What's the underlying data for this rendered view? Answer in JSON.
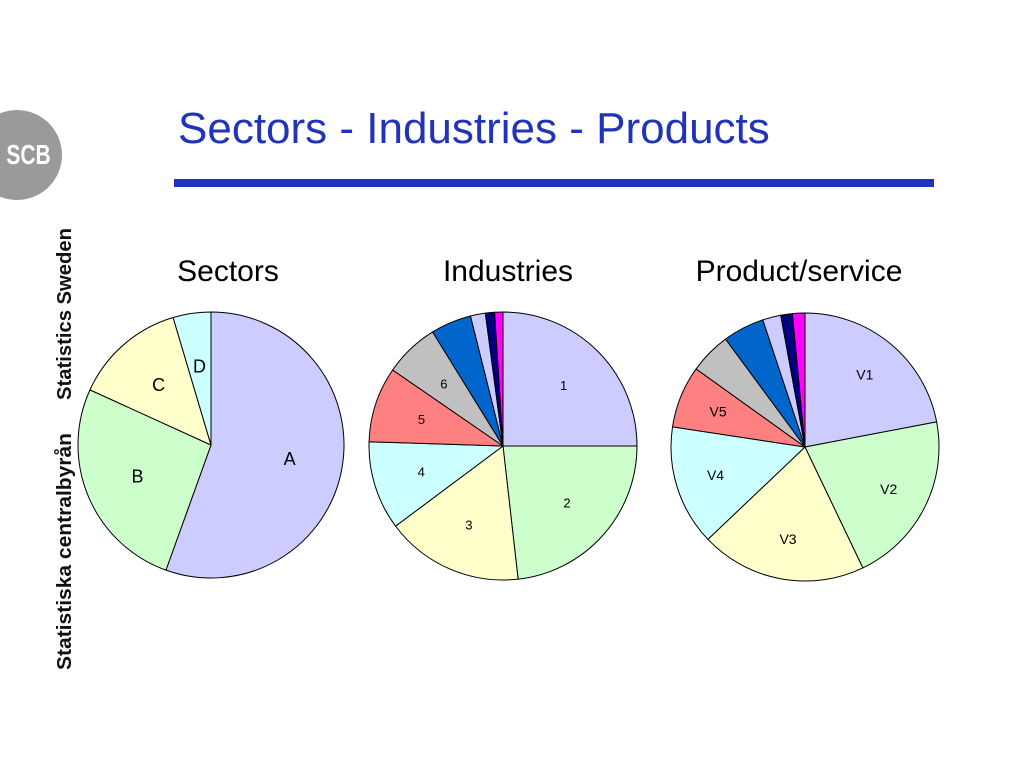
{
  "slide": {
    "title": "Sectors - Industries - Products",
    "logo_text": "SCB",
    "side_text_1": "Statistics Sweden",
    "side_text_2": "Statistiska centralbyrån",
    "title_color": "#2233bb"
  },
  "chart_data": [
    {
      "type": "pie",
      "title": "Sectors",
      "start_angle_deg": 0,
      "direction": "clockwise",
      "slices": [
        {
          "label": "A",
          "value": 55.5,
          "color": "#ccccff"
        },
        {
          "label": "B",
          "value": 26.3,
          "color": "#ccffcc"
        },
        {
          "label": "C",
          "value": 13.6,
          "color": "#ffffcc"
        },
        {
          "label": "D",
          "value": 4.6,
          "color": "#ccffff"
        }
      ]
    },
    {
      "type": "pie",
      "title": "Industries",
      "start_angle_deg": 0,
      "direction": "clockwise",
      "slices": [
        {
          "label": "1",
          "value": 25,
          "color": "#ccccff"
        },
        {
          "label": "2",
          "value": 23.2,
          "color": "#ccffcc"
        },
        {
          "label": "3",
          "value": 16.6,
          "color": "#ffffcc"
        },
        {
          "label": "4",
          "value": 10.7,
          "color": "#ccffff"
        },
        {
          "label": "5",
          "value": 9.1,
          "color": "#ff8080"
        },
        {
          "label": "6",
          "value": 6.6,
          "color": "#c0c0c0"
        },
        {
          "label": "",
          "value": 4.9,
          "color": "#0066cc"
        },
        {
          "label": "",
          "value": 1.8,
          "color": "#ccccff"
        },
        {
          "label": "",
          "value": 1.1,
          "color": "#000080"
        },
        {
          "label": "",
          "value": 1.0,
          "color": "#ff00ff"
        }
      ]
    },
    {
      "type": "pie",
      "title": "Product/service",
      "start_angle_deg": 0,
      "direction": "clockwise",
      "slices": [
        {
          "label": "V1",
          "value": 22.0,
          "color": "#ccccff"
        },
        {
          "label": "V2",
          "value": 20.9,
          "color": "#ccffcc"
        },
        {
          "label": "V3",
          "value": 20.0,
          "color": "#ffffcc"
        },
        {
          "label": "V4",
          "value": 14.5,
          "color": "#ccffff"
        },
        {
          "label": "V5",
          "value": 7.5,
          "color": "#ff8080"
        },
        {
          "label": "",
          "value": 5.0,
          "color": "#c0c0c0"
        },
        {
          "label": "",
          "value": 5.0,
          "color": "#0066cc"
        },
        {
          "label": "",
          "value": 2.2,
          "color": "#ccccff"
        },
        {
          "label": "",
          "value": 1.4,
          "color": "#000080"
        },
        {
          "label": "",
          "value": 1.5,
          "color": "#ff00ff"
        }
      ]
    }
  ]
}
